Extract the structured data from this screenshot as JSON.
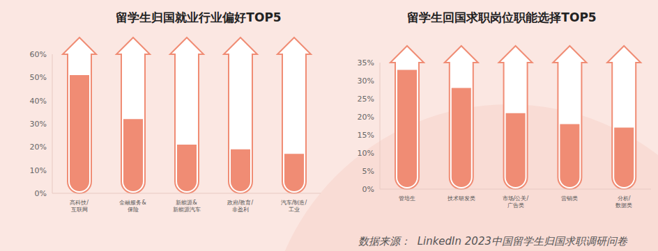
{
  "chart_data": [
    {
      "type": "bar",
      "title": "留学生归国就业行业偏好TOP5",
      "categories": [
        "高科技/\n互联网",
        "金融服务&\n保险",
        "新能源&\n新能源汽车",
        "政府/教育/\n非盈利",
        "汽车/制造/\n工业"
      ],
      "values": [
        51,
        32,
        21,
        19,
        17
      ],
      "color": "#f08c74",
      "ylim": [
        0,
        60
      ],
      "yticks": [
        {
          "value": 0,
          "label": "0%"
        },
        {
          "value": 10,
          "label": "10%"
        },
        {
          "value": 20,
          "label": "20%"
        },
        {
          "value": 30,
          "label": "30%"
        },
        {
          "value": 40,
          "label": "40%"
        },
        {
          "value": 50,
          "label": "50%"
        },
        {
          "value": 60,
          "label": "60%"
        }
      ],
      "grid": false
    },
    {
      "type": "bar",
      "title": "留学生回国求职岗位职能选择TOP5",
      "categories": [
        "管培生",
        "技术研发类",
        "市场/公关/\n广告类",
        "营销类",
        "分析/\n数据类"
      ],
      "values": [
        33,
        28,
        21,
        18,
        17
      ],
      "color": "#f08c74",
      "ylim": [
        0,
        35
      ],
      "yticks": [
        {
          "value": 0,
          "label": "0%"
        },
        {
          "value": 5,
          "label": "5%"
        },
        {
          "value": 10,
          "label": "10%"
        },
        {
          "value": 15,
          "label": "15%"
        },
        {
          "value": 20,
          "label": "20%"
        },
        {
          "value": 25,
          "label": "25%"
        },
        {
          "value": 30,
          "label": "30%"
        },
        {
          "value": 35,
          "label": "35%"
        }
      ],
      "grid": false
    }
  ],
  "source": "数据来源：  LinkedIn 2023中国留学生归国求职调研问卷"
}
